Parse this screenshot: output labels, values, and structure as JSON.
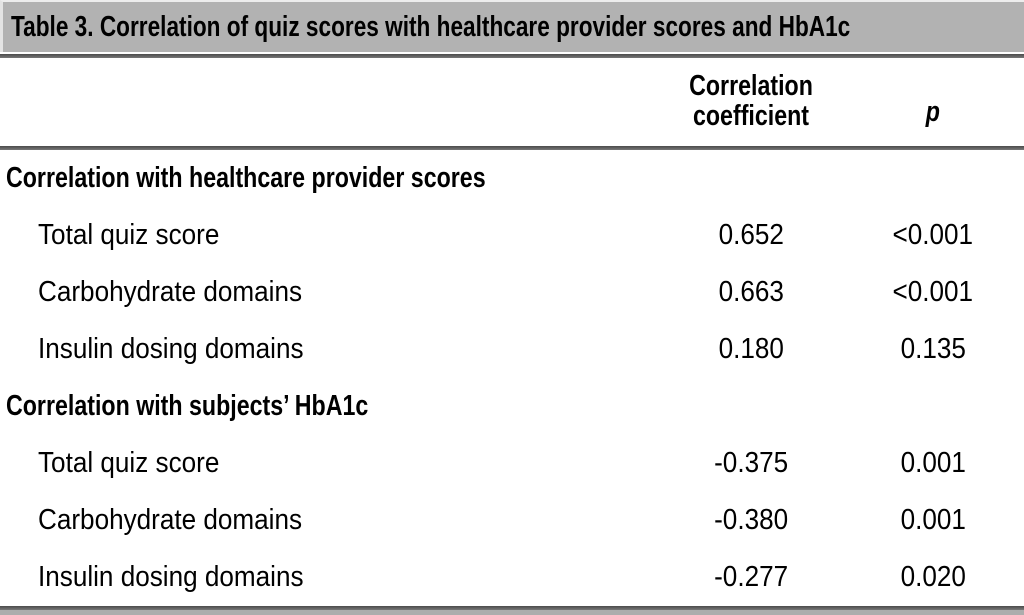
{
  "table": {
    "title": "Table 3. Correlation of quiz scores with healthcare provider scores and HbA1c",
    "columns": {
      "coefficient": "Correlation coefficient",
      "p": "p"
    },
    "sections": [
      {
        "header": "Correlation with healthcare provider scores",
        "rows": [
          {
            "label": "Total quiz score",
            "coefficient": "0.652",
            "p": "<0.001"
          },
          {
            "label": "Carbohydrate domains",
            "coefficient": "0.663",
            "p": "<0.001"
          },
          {
            "label": "Insulin dosing domains",
            "coefficient": "0.180",
            "p": "0.135"
          }
        ]
      },
      {
        "header": "Correlation with subjects’ HbA1c",
        "rows": [
          {
            "label": "Total quiz score",
            "coefficient": "-0.375",
            "p": "0.001"
          },
          {
            "label": "Carbohydrate domains",
            "coefficient": "-0.380",
            "p": "0.001"
          },
          {
            "label": "Insulin dosing domains",
            "coefficient": "-0.277",
            "p": "0.020"
          }
        ]
      }
    ],
    "colors": {
      "title_bar_bg": "#b2b2b2",
      "rule": "#565656",
      "bottom_strip": "#adadad",
      "text": "#000000"
    }
  }
}
